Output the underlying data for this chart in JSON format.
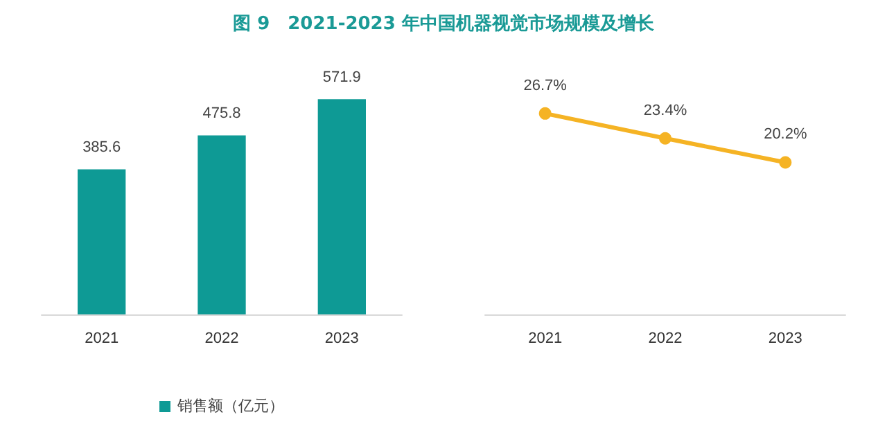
{
  "chart_data": [
    {
      "type": "bar",
      "title": "图 9　2021-2023 年中国机器视觉市场规模及增长",
      "categories": [
        "2021",
        "2022",
        "2023"
      ],
      "series": [
        {
          "name": "销售额（亿元）",
          "color": "#0e9a95",
          "values": [
            385.6,
            475.8,
            571.9
          ]
        }
      ],
      "data_labels": true,
      "tick_labels": "x",
      "legend": "bottom"
    },
    {
      "type": "line",
      "categories": [
        "2021",
        "2022",
        "2023"
      ],
      "series": [
        {
          "color": "#f5b324",
          "values": [
            26.7,
            23.4,
            20.2
          ],
          "value_labels": [
            "26.7%",
            "23.4%",
            "20.2%"
          ]
        }
      ],
      "marker": "circle",
      "line_style": "solid",
      "tick_labels": "x",
      "legend": false
    }
  ]
}
